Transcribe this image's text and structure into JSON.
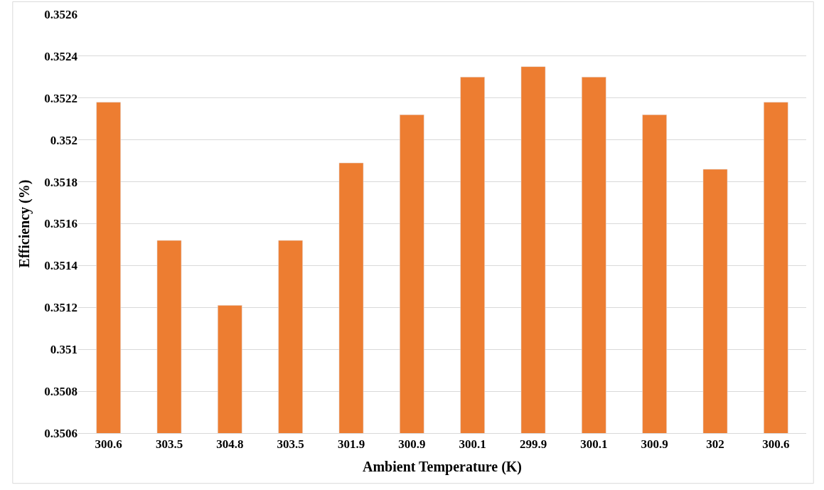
{
  "chart_data": {
    "type": "bar",
    "xlabel": "Ambient Temperature (K)",
    "ylabel": "Efficiency (%)",
    "categories": [
      "300.6",
      "303.5",
      "304.8",
      "303.5",
      "301.9",
      "300.9",
      "300.1",
      "299.9",
      "300.1",
      "300.9",
      "302",
      "300.6"
    ],
    "values": [
      0.35218,
      0.35152,
      0.35121,
      0.35152,
      0.35189,
      0.35212,
      0.3523,
      0.35235,
      0.3523,
      0.35212,
      0.35186,
      0.35218
    ],
    "color": "#ed7d31",
    "ylim": [
      0.3506,
      0.3526
    ],
    "yticks": [
      0.3506,
      0.3508,
      0.351,
      0.3512,
      0.3514,
      0.3516,
      0.3518,
      0.352,
      0.3522,
      0.3524,
      0.3526
    ],
    "grid": "y",
    "legend": false
  }
}
